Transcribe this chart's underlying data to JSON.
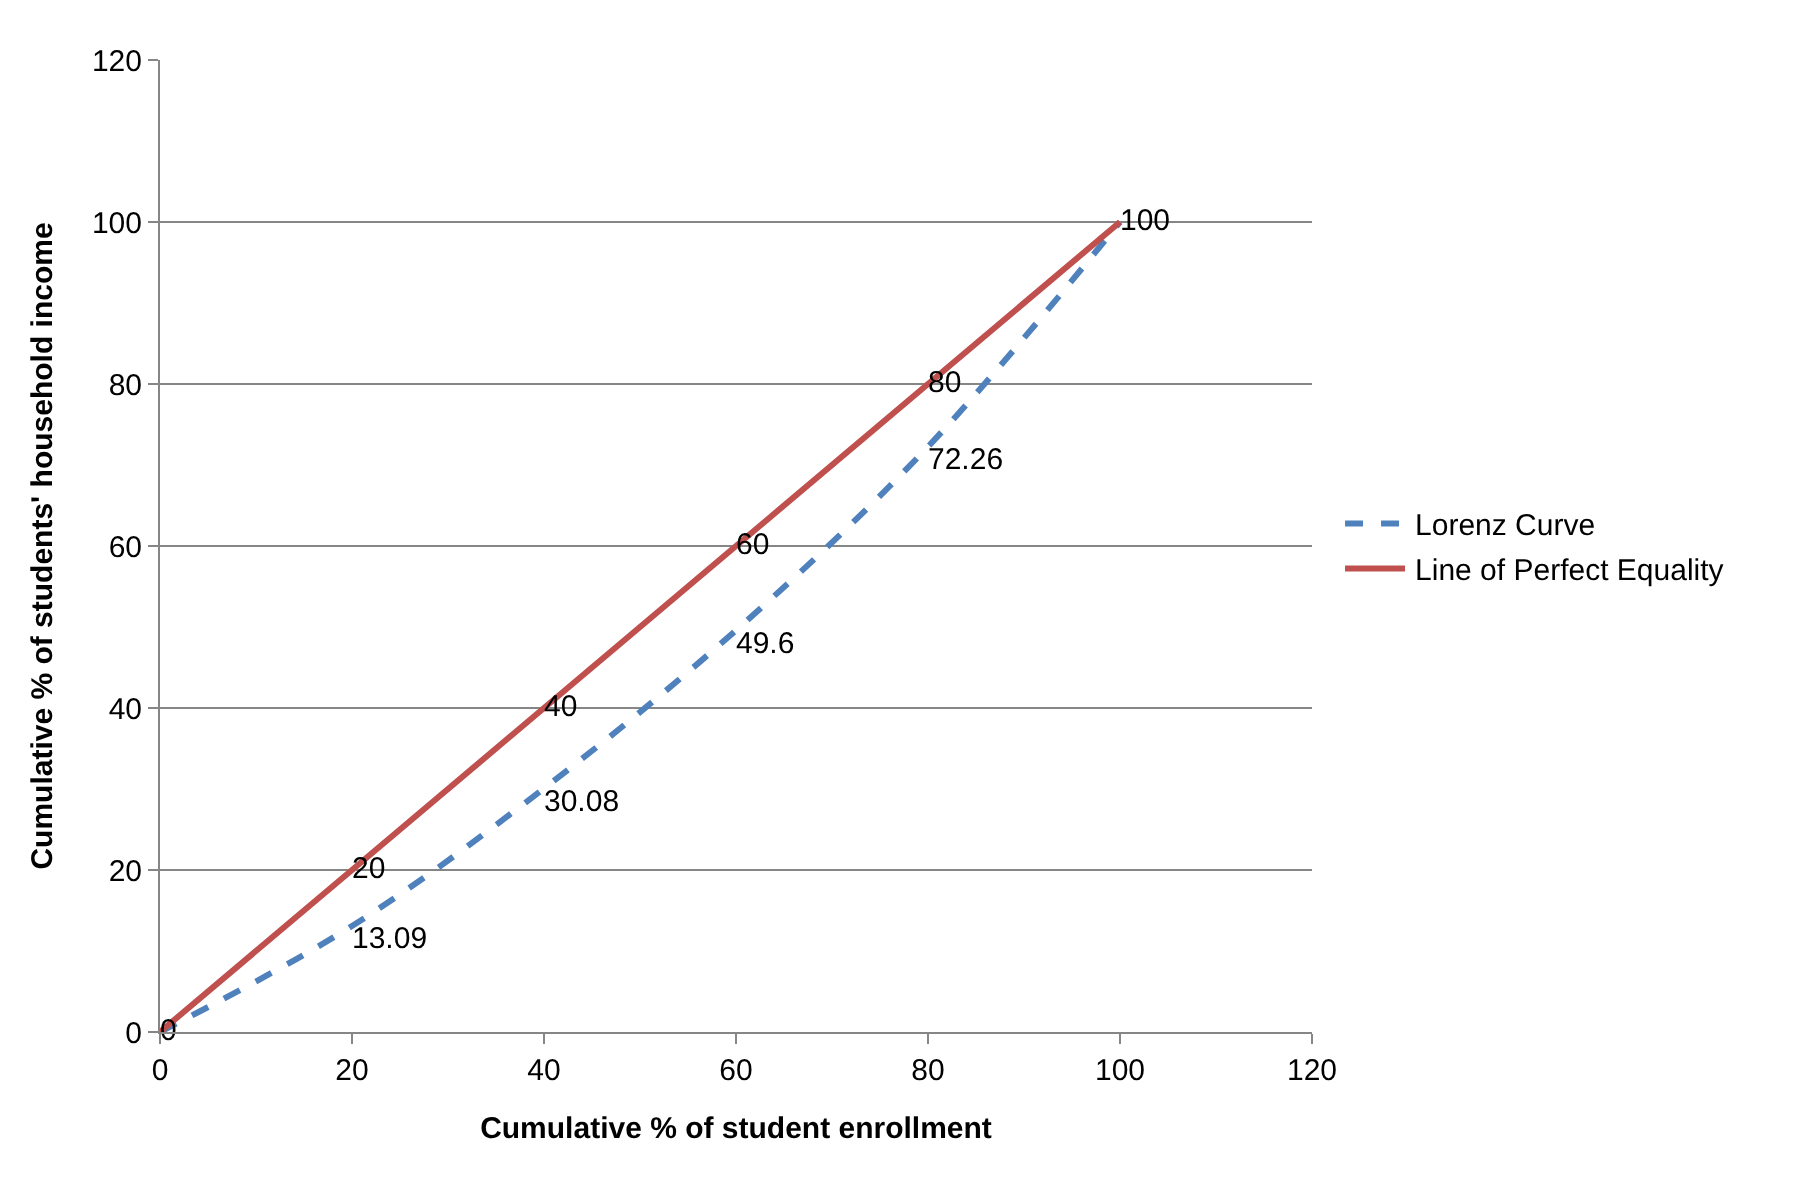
{
  "chart_data": {
    "type": "line",
    "xlabel": "Cumulative % of student enrollment",
    "ylabel": "Cumulative % of students' household income",
    "x": [
      0,
      20,
      40,
      60,
      80,
      100
    ],
    "series": [
      {
        "name": "Lorenz Curve",
        "color": "#4f81bd",
        "line_style": "dashed",
        "values": [
          0,
          13.09,
          30.08,
          49.6,
          72.26,
          100
        ],
        "value_labels": [
          null,
          "13.09",
          "30.08",
          "49.6",
          "72.26",
          null
        ]
      },
      {
        "name": "Line of Perfect Equality",
        "color": "#c0504d",
        "line_style": "solid",
        "values": [
          0,
          20,
          40,
          60,
          80,
          100
        ],
        "value_labels": [
          "0",
          "20",
          "40",
          "60",
          "80",
          "100"
        ]
      }
    ],
    "xlim": [
      0,
      120
    ],
    "xticks": [
      0,
      20,
      40,
      60,
      80,
      100,
      120
    ],
    "ylim": [
      0,
      120
    ],
    "yticks": [
      0,
      20,
      40,
      60,
      80,
      100,
      120
    ],
    "grid": "y",
    "legend": "right",
    "marker": "none"
  }
}
